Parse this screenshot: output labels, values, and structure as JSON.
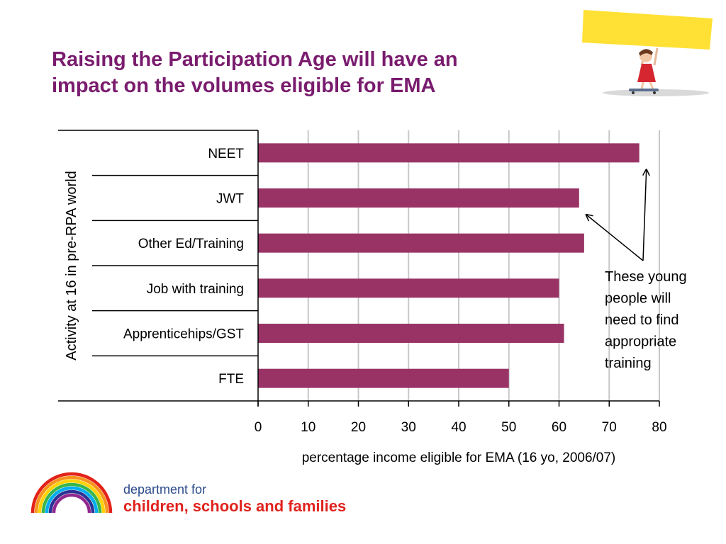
{
  "slide": {
    "title_line1": "Raising the Participation Age will have an",
    "title_line2": "impact on the volumes eligible for EMA"
  },
  "logo": {
    "line1": "department for",
    "line2": "children, schools and families"
  },
  "chart_data": {
    "type": "bar",
    "orientation": "horizontal",
    "categories": [
      "NEET",
      "JWT",
      "Other Ed/Training",
      "Job with training",
      "Apprenticehips/GST",
      "FTE"
    ],
    "values": [
      76,
      64,
      65,
      60,
      61,
      50
    ],
    "xlabel": "percentage income eligible for EMA (16 yo, 2006/07)",
    "ylabel": "Activity at 16 in pre-RPA world",
    "xlim": [
      0,
      80
    ],
    "xticks": [
      0,
      10,
      20,
      30,
      40,
      50,
      60,
      70,
      80
    ],
    "grid": true,
    "bar_color": "#993366",
    "annotation": {
      "lines": [
        "These young",
        "people will",
        "need to find",
        "appropriate",
        "training"
      ],
      "points_to": [
        "NEET",
        "JWT"
      ]
    }
  }
}
